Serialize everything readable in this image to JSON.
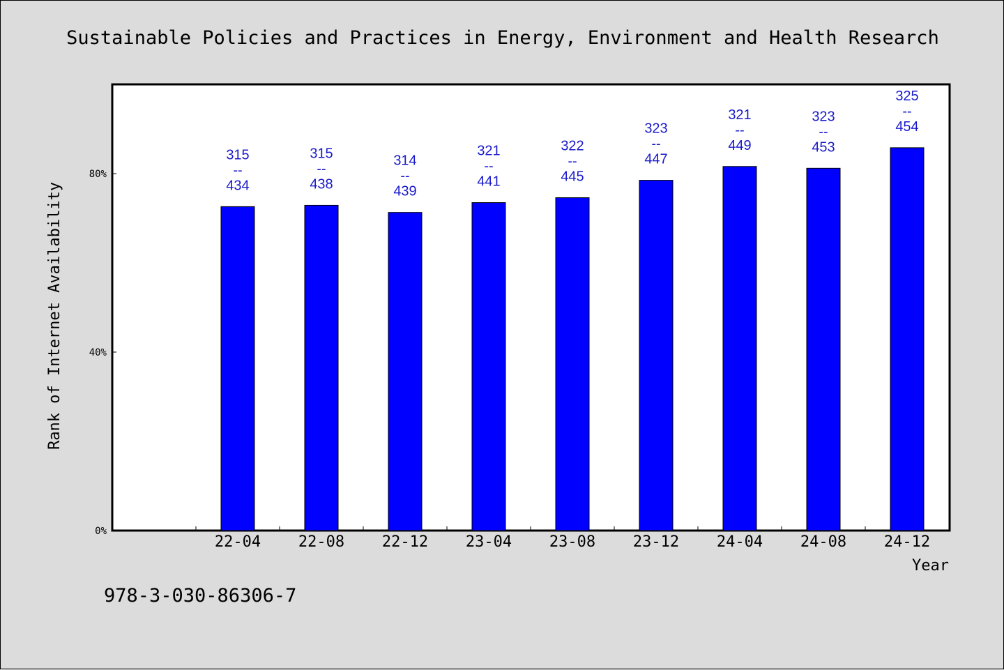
{
  "chart_data": {
    "type": "bar",
    "title": "Sustainable Policies and Practices in Energy, Environment and Health Research",
    "xlabel": "Year",
    "ylabel": "Rank of Internet Availability",
    "categories": [
      "22-04",
      "22-08",
      "22-12",
      "23-04",
      "23-08",
      "23-12",
      "24-04",
      "24-08",
      "24-12"
    ],
    "values": [
      72.6,
      72.9,
      71.3,
      73.5,
      74.6,
      78.5,
      81.6,
      81.2,
      85.8
    ],
    "data_labels": [
      {
        "top": "315",
        "sep": "--",
        "bottom": "434"
      },
      {
        "top": "315",
        "sep": "--",
        "bottom": "438"
      },
      {
        "top": "314",
        "sep": "--",
        "bottom": "439"
      },
      {
        "top": "321",
        "sep": "--",
        "bottom": "441"
      },
      {
        "top": "322",
        "sep": "--",
        "bottom": "445"
      },
      {
        "top": "323",
        "sep": "--",
        "bottom": "447"
      },
      {
        "top": "321",
        "sep": "--",
        "bottom": "449"
      },
      {
        "top": "323",
        "sep": "--",
        "bottom": "453"
      },
      {
        "top": "325",
        "sep": "--",
        "bottom": "454"
      }
    ],
    "y_ticks": [
      {
        "value": 0,
        "label": "0%"
      },
      {
        "value": 40,
        "label": "40%"
      },
      {
        "value": 80,
        "label": "80%"
      }
    ],
    "ylim": [
      0,
      100
    ],
    "grid": false,
    "bar_color": "#0000ff",
    "label_color": "#1a1acc",
    "plot_background": "#ffffff",
    "page_background": "#dcdcdc"
  },
  "footer": {
    "isbn": "978-3-030-86306-7"
  }
}
